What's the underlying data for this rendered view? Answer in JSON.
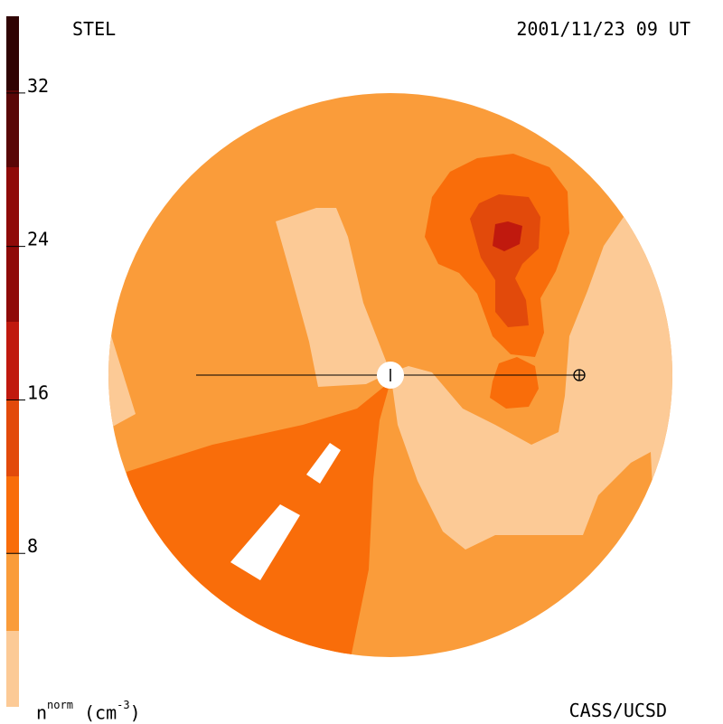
{
  "header": {
    "station": "STEL",
    "datetime": "2001/11/23 09 UT"
  },
  "footer": {
    "credit": "CASS/UCSD",
    "units_base": "n",
    "units_sup": "norm",
    "units_rest": "(cm",
    "units_exp": "-3",
    "units_close": ")"
  },
  "colors": {
    "level_0": "#fcca96",
    "level_1": "#fa9c3a",
    "level_2": "#f96d0a",
    "level_3": "#e24a0b",
    "level_4": "#c0190e",
    "level_5": "#8f0a08",
    "level_6": "#5a0606",
    "level_7": "#300404",
    "line": "#000000",
    "sun": "#ffffff"
  },
  "chart_data": {
    "type": "heatmap",
    "colorbar": {
      "min": 0,
      "max": 36,
      "ticks": [
        8,
        16,
        24,
        32
      ],
      "levels": [
        0,
        4,
        8,
        12,
        16,
        20,
        24,
        28,
        32,
        36
      ]
    },
    "markers": [
      "sun",
      "earth"
    ]
  }
}
